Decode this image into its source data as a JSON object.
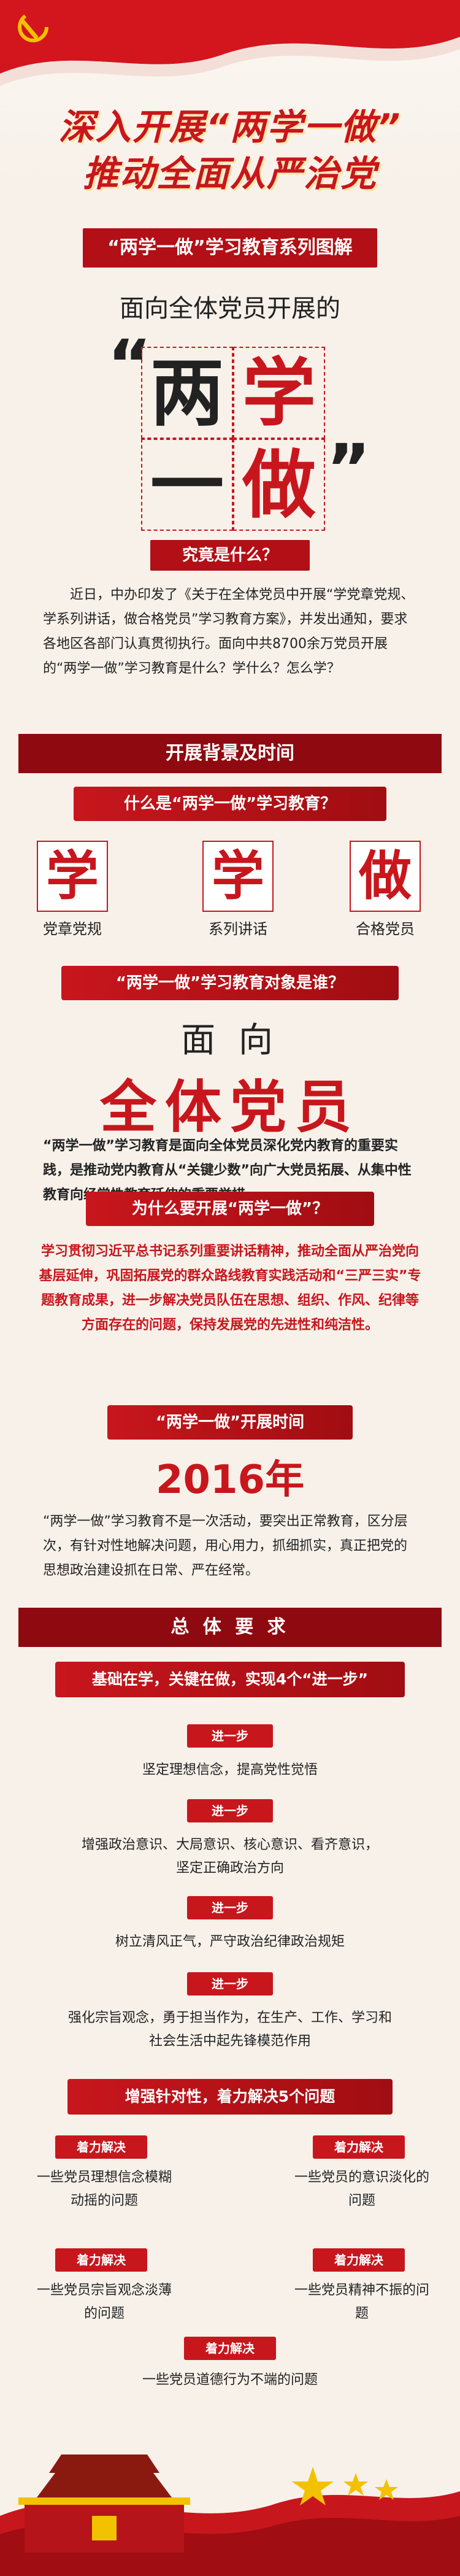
{
  "header": {
    "line1": "深入开展“两学一做”",
    "line2": "推动全面从严治党"
  },
  "intro": {
    "series_title": "“两学一做”学习教育系列图解",
    "subtitle": "面向全体党员开展的",
    "chars": [
      "两",
      "学",
      "一",
      "做"
    ],
    "quote_open": "“",
    "quote_close": "”",
    "question": "究竟是什么？",
    "paragraph": "近日，中办印发了《关于在全体党员中开展“学党章党规、学系列讲话，做合格党员”学习教育方案》，并发出通知，要求各地区各部门认真贯彻执行。面向中共8700余万党员开展的“两学一做”学习教育是什么？学什么？怎么学？"
  },
  "background_section": {
    "heading": "开展背景及时间",
    "q1": "什么是“两学一做”学习教育？",
    "words": [
      {
        "char": "学",
        "label": "党章党规"
      },
      {
        "char": "学",
        "label": "系列讲话"
      },
      {
        "char": "做",
        "label": "合格党员"
      }
    ],
    "q2": "“两学一做”学习教育对象是谁？",
    "target_small": "面  向",
    "target_big": "全体党员",
    "target_para": "“两学一做”学习教育是面向全体党员深化党内教育的重要实践，是推动党内教育从“关键少数”向广大党员拓展、从集中性教育向经常性教育延伸的重要举措。",
    "q3": "为什么要开展“两学一做”？",
    "why_para": "学习贯彻习近平总书记系列重要讲话精神，推动全面从严治党向基层延伸，巩固拓展党的群众路线教育实践活动和“三严三实”专题教育成果，进一步解决党员队伍在思想、组织、作风、纪律等方面存在的问题，保持发展党的先进性和纯洁性。",
    "q4": "“两学一做”开展时间",
    "year": "2016年",
    "time_para": "“两学一做”学习教育不是一次活动，要突出正常教育，区分层次，有针对性地解决问题，用心用力，抓细抓实，真正把党的思想政治建设抓在日常、严在经常。"
  },
  "requirements": {
    "heading": "总 体 要 求",
    "steps_title": "基础在学，关键在做，实现4个“进一步”",
    "step_badge": "进一步",
    "steps": [
      "坚定理想信念，提高党性觉悟",
      "增强政治意识、大局意识、核心意识、看齐意识，坚定正确政治方向",
      "树立清风正气，严守政治纪律政治规矩",
      "强化宗旨观念，勇于担当作为，在生产、工作、学习和社会生活中起先锋模范作用"
    ],
    "problems_title": "增强针对性，着力解决5个问题",
    "problem_badge": "着力解决",
    "problems": [
      "一些党员理想信念模糊动摇的问题",
      "一些党员的意识淡化的问题",
      "一些党员宗旨观念淡薄的问题",
      "一些党员精神不振的问题",
      "一些党员道德行为不端的问题"
    ]
  },
  "colors": {
    "primary_red": "#c8161d",
    "dark_red": "#8f0a10",
    "gold": "#f2c200",
    "background": "#f7f1ea"
  }
}
